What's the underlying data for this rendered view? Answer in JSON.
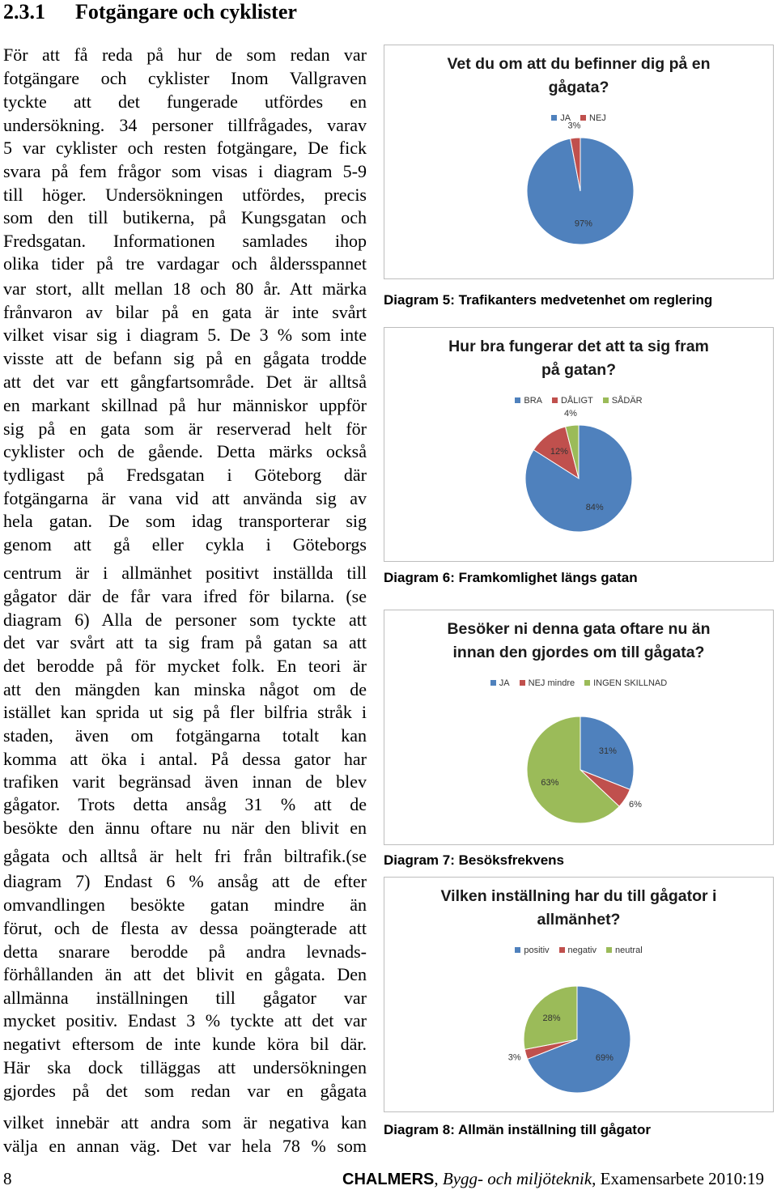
{
  "heading": {
    "number": "2.3.1",
    "title": "Fotgängare och cyklister"
  },
  "body": {
    "lines": [
      "För att få reda på hur de som redan var",
      "fotgängare och cyklister Inom Vallgraven",
      "tyckte att det fungerade utfördes en",
      "undersökning. 34 personer tillfrågades, varav",
      "5 var cyklister och resten fotgängare, De fick",
      "svara på fem frågor som visas i diagram 5-9",
      "till höger. Undersökningen utfördes, precis",
      "som den till butikerna, på Kungsgatan och",
      "Fredsgatan. Informationen samlades ihop",
      "olika tider på tre vardagar och åldersspannet",
      "var stort, allt mellan 18 och 80 år. Att märka",
      "frånvaron av bilar på en gata är inte svårt",
      "vilket visar sig i diagram 5. De 3 % som inte",
      "visste att de befann sig på en gågata trodde",
      "att det var ett gångfartsområde. Det är alltså",
      "en markant skillnad på hur människor uppför",
      "sig på en gata som är reserverad helt för",
      "cyklister och de gående. Detta märks också",
      "tydligast på Fredsgatan i Göteborg där",
      "fotgängarna är vana vid att använda sig av",
      "hela gatan. De som idag transporterar sig",
      "genom att gå eller cykla i Göteborgs",
      "centrum är i allmänhet positivt inställda till",
      "gågator där de får vara ifred för bilarna. (se",
      "diagram 6) Alla de personer som tyckte att",
      "det var svårt att ta sig fram på gatan sa att",
      "det berodde på för mycket folk. En teori är",
      "att den mängden kan minska något om de",
      "istället kan sprida ut sig på fler bilfria stråk i",
      "staden, även om fotgängarna totalt kan",
      "komma att öka i antal. På dessa gator har",
      "trafiken varit begränsad även innan de blev",
      "gågator. Trots detta ansåg 31 % att de",
      "besökte den ännu oftare nu när den blivit en",
      "gågata och alltså är helt fri från biltrafik.(se",
      "diagram 7) Endast 6 % ansåg att de efter",
      "omvandlingen besökte gatan mindre än",
      "förut, och de flesta av dessa poängterade att",
      "detta snarare berodde på andra levnads-",
      "förhållanden än att det blivit en gågata. Den",
      "allmänna inställningen till gågator var",
      "mycket positiv. Endast 3 % tyckte att det var",
      "negativt eftersom de inte kunde köra bil där.",
      "Här ska dock tilläggas att undersökningen",
      "gjordes på det som redan var en gågata",
      "vilket innebär att andra som är negativa kan",
      "välja en annan väg. Det var hela 78 % som"
    ]
  },
  "chart_data": [
    {
      "type": "pie",
      "title": [
        "Vet du om att du befinner dig på en",
        "gågata?"
      ],
      "caption": "Diagram 5: Trafikanters medvetenhet om reglering",
      "categories": [
        "JA",
        "NEJ"
      ],
      "values": [
        97,
        3
      ],
      "value_labels": [
        "97%",
        "3%"
      ],
      "colors": [
        "#4f81bd",
        "#c0504d"
      ]
    },
    {
      "type": "pie",
      "title": [
        "Hur bra fungerar det att ta sig fram",
        "på gatan?"
      ],
      "caption": "Diagram 6: Framkomlighet längs gatan",
      "categories": [
        "BRA",
        "DÅLIGT",
        "SÅDÄR"
      ],
      "values": [
        84,
        12,
        4
      ],
      "value_labels": [
        "84%",
        "12%",
        "4%"
      ],
      "colors": [
        "#4f81bd",
        "#c0504d",
        "#9bbb59"
      ]
    },
    {
      "type": "pie",
      "title": [
        "Besöker ni denna gata oftare nu än",
        "innan den gjordes om till gågata?"
      ],
      "caption": "Diagram 7: Besöksfrekvens",
      "categories": [
        "JA",
        "NEJ mindre",
        "INGEN SKILLNAD"
      ],
      "values": [
        31,
        6,
        63
      ],
      "value_labels": [
        "31%",
        "6%",
        "63%"
      ],
      "colors": [
        "#4f81bd",
        "#c0504d",
        "#9bbb59"
      ]
    },
    {
      "type": "pie",
      "title": [
        "Vilken inställning har du till gågator i",
        "allmänhet?"
      ],
      "caption": "Diagram 8: Allmän inställning till gågator",
      "categories": [
        "positiv",
        "negativ",
        "neutral"
      ],
      "values": [
        69,
        3,
        28
      ],
      "value_labels": [
        "69%",
        "3%",
        "28%"
      ],
      "colors": [
        "#4f81bd",
        "#c0504d",
        "#9bbb59"
      ]
    }
  ],
  "footer": {
    "page_number": "8",
    "publisher": "CHALMERS",
    "separator": ", ",
    "department": "Bygg- och miljöteknik",
    "publication": "Examensarbete 2010:19"
  }
}
